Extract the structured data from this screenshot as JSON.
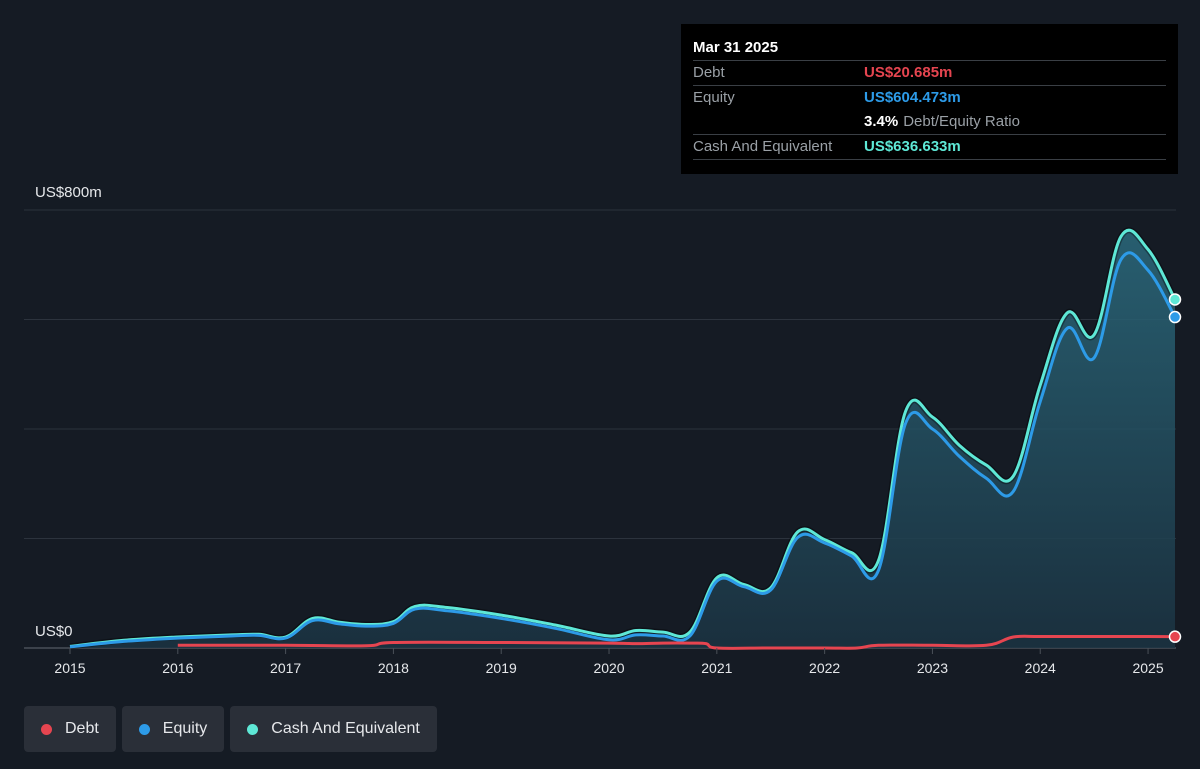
{
  "tooltip": {
    "date": "Mar 31 2025",
    "debt_label": "Debt",
    "debt_value": "US$20.685m",
    "equity_label": "Equity",
    "equity_value": "US$604.473m",
    "ratio_value": "3.4%",
    "ratio_label": "Debt/Equity Ratio",
    "cash_label": "Cash And Equivalent",
    "cash_value": "US$636.633m"
  },
  "legend": [
    {
      "label": "Debt",
      "color": "#e64550"
    },
    {
      "label": "Equity",
      "color": "#2d9be8"
    },
    {
      "label": "Cash And Equivalent",
      "color": "#5ee8d6"
    }
  ],
  "chart_data": {
    "type": "area",
    "y_top_label": "US$800m",
    "y_bottom_label": "US$0",
    "ylim": [
      0,
      800
    ],
    "xlim": [
      2015.0,
      2025.25
    ],
    "x_ticks": [
      "2015",
      "2016",
      "2017",
      "2018",
      "2019",
      "2020",
      "2021",
      "2022",
      "2023",
      "2024",
      "2025"
    ],
    "grid": true,
    "legend_position": "bottom-left",
    "series": [
      {
        "name": "Debt",
        "color": "#e64550",
        "points": [
          [
            2016.0,
            5
          ],
          [
            2017.0,
            5
          ],
          [
            2017.75,
            4
          ],
          [
            2018.0,
            10
          ],
          [
            2019.0,
            10
          ],
          [
            2020.0,
            9
          ],
          [
            2020.25,
            8
          ],
          [
            2020.5,
            9
          ],
          [
            2020.75,
            9
          ],
          [
            2020.9,
            8
          ],
          [
            2021.0,
            0
          ],
          [
            2021.5,
            0
          ],
          [
            2022.0,
            0
          ],
          [
            2022.3,
            0
          ],
          [
            2022.5,
            5
          ],
          [
            2023.0,
            5
          ],
          [
            2023.5,
            5
          ],
          [
            2023.75,
            20
          ],
          [
            2024.0,
            21
          ],
          [
            2024.5,
            21
          ],
          [
            2025.0,
            21
          ],
          [
            2025.25,
            20.685
          ]
        ]
      },
      {
        "name": "Equity",
        "color": "#2d9be8",
        "points": [
          [
            2015.0,
            2
          ],
          [
            2015.5,
            12
          ],
          [
            2016.0,
            18
          ],
          [
            2016.5,
            22
          ],
          [
            2016.75,
            23
          ],
          [
            2017.0,
            18
          ],
          [
            2017.25,
            50
          ],
          [
            2017.5,
            44
          ],
          [
            2017.75,
            40
          ],
          [
            2018.0,
            45
          ],
          [
            2018.2,
            71
          ],
          [
            2018.5,
            68
          ],
          [
            2019.0,
            54
          ],
          [
            2019.5,
            36
          ],
          [
            2020.0,
            15
          ],
          [
            2020.25,
            24
          ],
          [
            2020.5,
            22
          ],
          [
            2020.75,
            22
          ],
          [
            2021.0,
            122
          ],
          [
            2021.25,
            112
          ],
          [
            2021.5,
            106
          ],
          [
            2021.75,
            202
          ],
          [
            2022.0,
            192
          ],
          [
            2022.25,
            168
          ],
          [
            2022.5,
            142
          ],
          [
            2022.75,
            410
          ],
          [
            2023.0,
            400
          ],
          [
            2023.25,
            350
          ],
          [
            2023.5,
            310
          ],
          [
            2023.75,
            286
          ],
          [
            2024.0,
            450
          ],
          [
            2024.25,
            584
          ],
          [
            2024.5,
            530
          ],
          [
            2024.75,
            710
          ],
          [
            2025.0,
            690
          ],
          [
            2025.25,
            604.473
          ]
        ]
      },
      {
        "name": "Cash And Equivalent",
        "color": "#5ee8d6",
        "points": [
          [
            2015.0,
            3
          ],
          [
            2015.5,
            14
          ],
          [
            2016.0,
            20
          ],
          [
            2016.5,
            24
          ],
          [
            2016.75,
            25
          ],
          [
            2017.0,
            20
          ],
          [
            2017.25,
            54
          ],
          [
            2017.5,
            47
          ],
          [
            2017.75,
            43
          ],
          [
            2018.0,
            48
          ],
          [
            2018.2,
            76
          ],
          [
            2018.5,
            74
          ],
          [
            2019.0,
            60
          ],
          [
            2019.5,
            42
          ],
          [
            2020.0,
            22
          ],
          [
            2020.25,
            32
          ],
          [
            2020.5,
            29
          ],
          [
            2020.75,
            29
          ],
          [
            2021.0,
            128
          ],
          [
            2021.25,
            116
          ],
          [
            2021.5,
            110
          ],
          [
            2021.75,
            212
          ],
          [
            2022.0,
            198
          ],
          [
            2022.25,
            174
          ],
          [
            2022.5,
            160
          ],
          [
            2022.75,
            432
          ],
          [
            2023.0,
            422
          ],
          [
            2023.25,
            370
          ],
          [
            2023.5,
            334
          ],
          [
            2023.75,
            314
          ],
          [
            2024.0,
            480
          ],
          [
            2024.25,
            612
          ],
          [
            2024.5,
            572
          ],
          [
            2024.75,
            752
          ],
          [
            2025.0,
            728
          ],
          [
            2025.25,
            636.633
          ]
        ]
      }
    ]
  }
}
